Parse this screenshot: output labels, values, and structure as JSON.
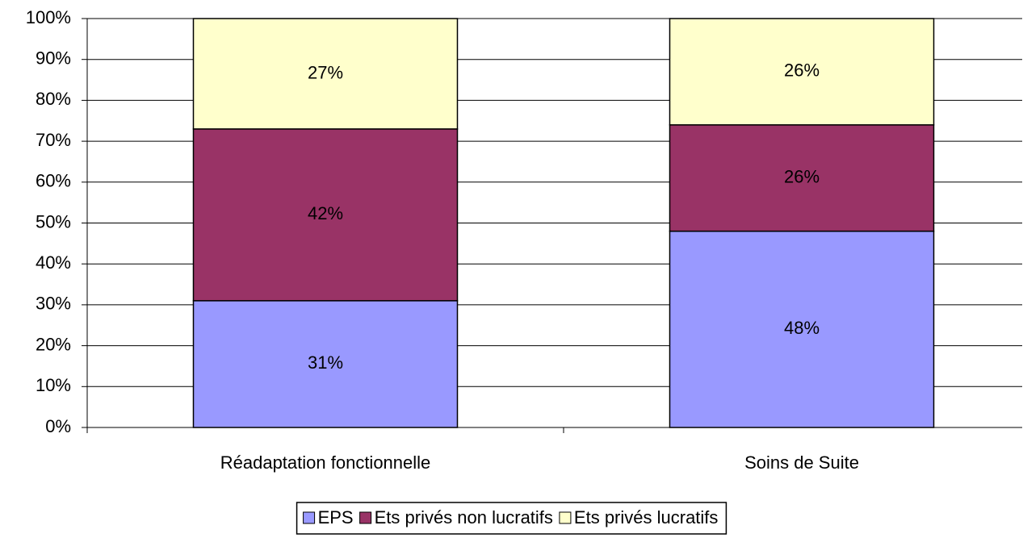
{
  "chart_data": {
    "type": "stacked_bar",
    "categories": [
      "Réadaptation fonctionnelle",
      "Soins de Suite"
    ],
    "series": [
      {
        "name": "EPS",
        "color": "#9999ff",
        "values": [
          31,
          48
        ],
        "value_labels": [
          "31%",
          "48%"
        ]
      },
      {
        "name": "Ets privés non lucratifs",
        "color": "#993366",
        "values": [
          42,
          26
        ],
        "value_labels": [
          "42%",
          "26%"
        ]
      },
      {
        "name": "Ets privés lucratifs",
        "color": "#ffffcc",
        "values": [
          27,
          26
        ],
        "value_labels": [
          "27%",
          "26%"
        ]
      }
    ],
    "ylim": [
      0,
      100
    ],
    "yticks": [
      {
        "value": 0,
        "label": "0%"
      },
      {
        "value": 10,
        "label": "10%"
      },
      {
        "value": 20,
        "label": "20%"
      },
      {
        "value": 30,
        "label": "30%"
      },
      {
        "value": 40,
        "label": "40%"
      },
      {
        "value": 50,
        "label": "50%"
      },
      {
        "value": 60,
        "label": "60%"
      },
      {
        "value": 70,
        "label": "70%"
      },
      {
        "value": 80,
        "label": "80%"
      },
      {
        "value": 90,
        "label": "90%"
      },
      {
        "value": 100,
        "label": "100%"
      }
    ],
    "grid": true,
    "legend": "bottom"
  }
}
